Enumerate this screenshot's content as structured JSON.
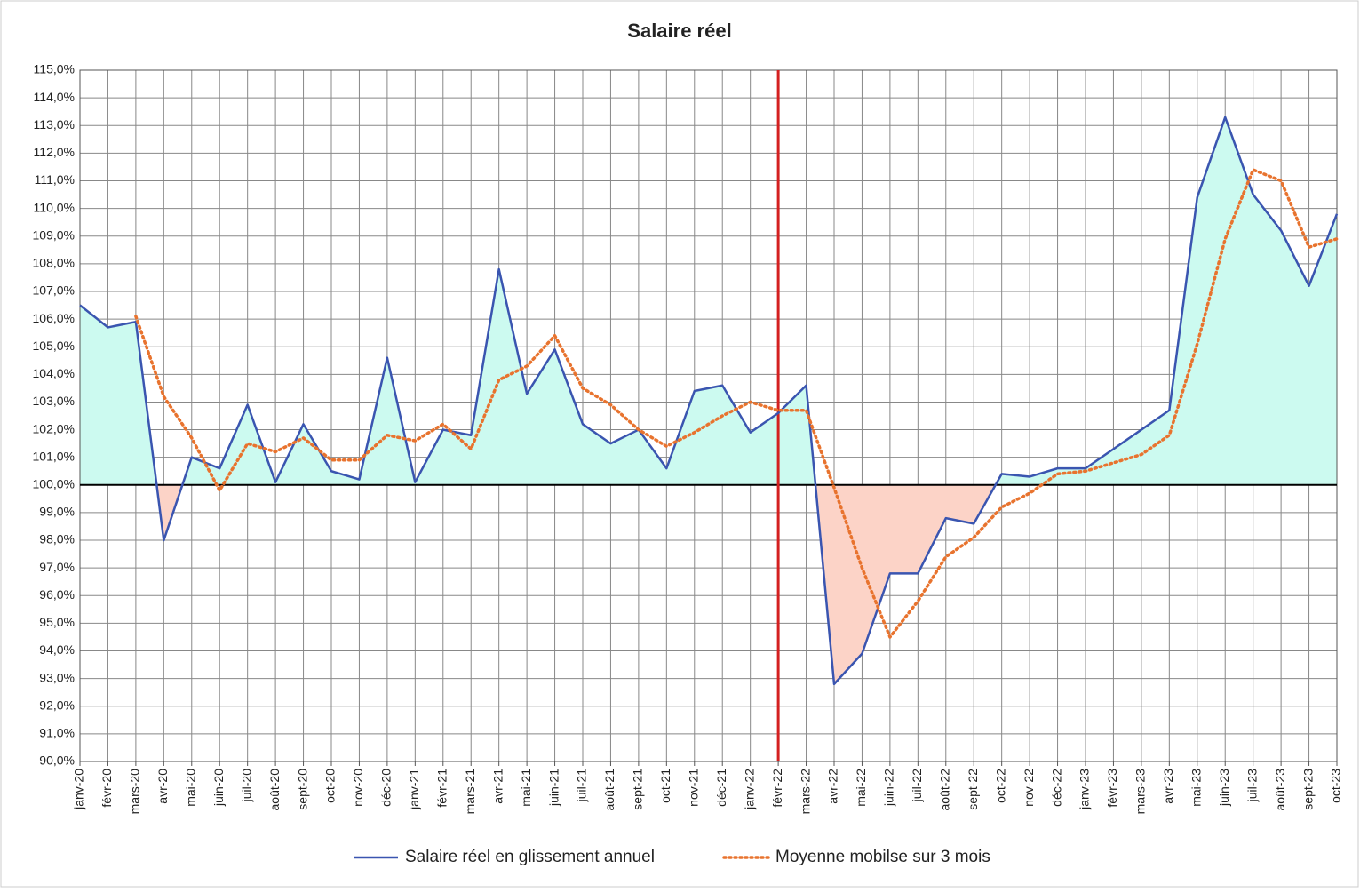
{
  "chart_data": {
    "type": "line",
    "title": "Salaire réel",
    "categories": [
      "janv-20",
      "févr-20",
      "mars-20",
      "avr-20",
      "mai-20",
      "juin-20",
      "juil-20",
      "août-20",
      "sept-20",
      "oct-20",
      "nov-20",
      "déc-20",
      "janv-21",
      "févr-21",
      "mars-21",
      "avr-21",
      "mai-21",
      "juin-21",
      "juil-21",
      "août-21",
      "sept-21",
      "oct-21",
      "nov-21",
      "déc-21",
      "janv-22",
      "févr-22",
      "mars-22",
      "avr-22",
      "mai-22",
      "juin-22",
      "juil-22",
      "août-22",
      "sept-22",
      "oct-22",
      "nov-22",
      "déc-22",
      "janv-23",
      "févr-23",
      "mars-23",
      "avr-23",
      "mai-23",
      "juin-23",
      "juil-23",
      "août-23",
      "sept-23",
      "oct-23"
    ],
    "series": [
      {
        "name": "Salaire réel en glissement annuel",
        "color": "#3a55b0",
        "values": [
          106.5,
          105.7,
          105.9,
          98.0,
          101.0,
          100.6,
          102.9,
          100.1,
          102.2,
          100.5,
          100.2,
          104.6,
          100.1,
          102.0,
          101.8,
          107.8,
          103.3,
          104.9,
          102.2,
          101.5,
          102.0,
          100.6,
          103.4,
          103.6,
          101.9,
          102.6,
          103.6,
          92.8,
          93.9,
          96.8,
          96.8,
          98.8,
          98.6,
          100.4,
          100.3,
          100.6,
          100.6,
          101.3,
          102.0,
          102.7,
          110.4,
          113.3,
          110.5,
          109.2,
          107.2,
          109.8
        ]
      },
      {
        "name": "Moyenne mobilse sur 3 mois",
        "color": "#e8732e",
        "values": [
          null,
          null,
          106.1,
          103.2,
          101.7,
          99.8,
          101.5,
          101.2,
          101.7,
          100.9,
          100.9,
          101.8,
          101.6,
          102.2,
          101.3,
          103.8,
          104.3,
          105.4,
          103.5,
          102.9,
          102.0,
          101.4,
          101.9,
          102.5,
          103.0,
          102.7,
          102.7,
          99.9,
          97.0,
          94.5,
          95.8,
          97.4,
          98.1,
          99.2,
          99.7,
          100.4,
          100.5,
          100.8,
          101.1,
          101.8,
          105.1,
          108.9,
          111.4,
          111.0,
          108.6,
          108.9
        ]
      }
    ],
    "ylim": [
      90,
      115
    ],
    "yticks": [
      {
        "value": 90,
        "label": "90,0%"
      },
      {
        "value": 91,
        "label": "91,0%"
      },
      {
        "value": 92,
        "label": "92,0%"
      },
      {
        "value": 93,
        "label": "93,0%"
      },
      {
        "value": 94,
        "label": "94,0%"
      },
      {
        "value": 95,
        "label": "95,0%"
      },
      {
        "value": 96,
        "label": "96,0%"
      },
      {
        "value": 97,
        "label": "97,0%"
      },
      {
        "value": 98,
        "label": "98,0%"
      },
      {
        "value": 99,
        "label": "99,0%"
      },
      {
        "value": 100,
        "label": "100,0%"
      },
      {
        "value": 101,
        "label": "101,0%"
      },
      {
        "value": 102,
        "label": "102,0%"
      },
      {
        "value": 103,
        "label": "103,0%"
      },
      {
        "value": 104,
        "label": "104,0%"
      },
      {
        "value": 105,
        "label": "105,0%"
      },
      {
        "value": 106,
        "label": "106,0%"
      },
      {
        "value": 107,
        "label": "107,0%"
      },
      {
        "value": 108,
        "label": "108,0%"
      },
      {
        "value": 109,
        "label": "109,0%"
      },
      {
        "value": 110,
        "label": "110,0%"
      },
      {
        "value": 111,
        "label": "111,0%"
      },
      {
        "value": 112,
        "label": "112,0%"
      },
      {
        "value": 113,
        "label": "113,0%"
      },
      {
        "value": 114,
        "label": "114,0%"
      },
      {
        "value": 115,
        "label": "115,0%"
      }
    ],
    "grid": true,
    "reference_line": 100,
    "vertical_line": "févr-22",
    "fill_above": "#ccfaf0",
    "fill_below": "#fcd3c7",
    "legend": "bottom"
  }
}
